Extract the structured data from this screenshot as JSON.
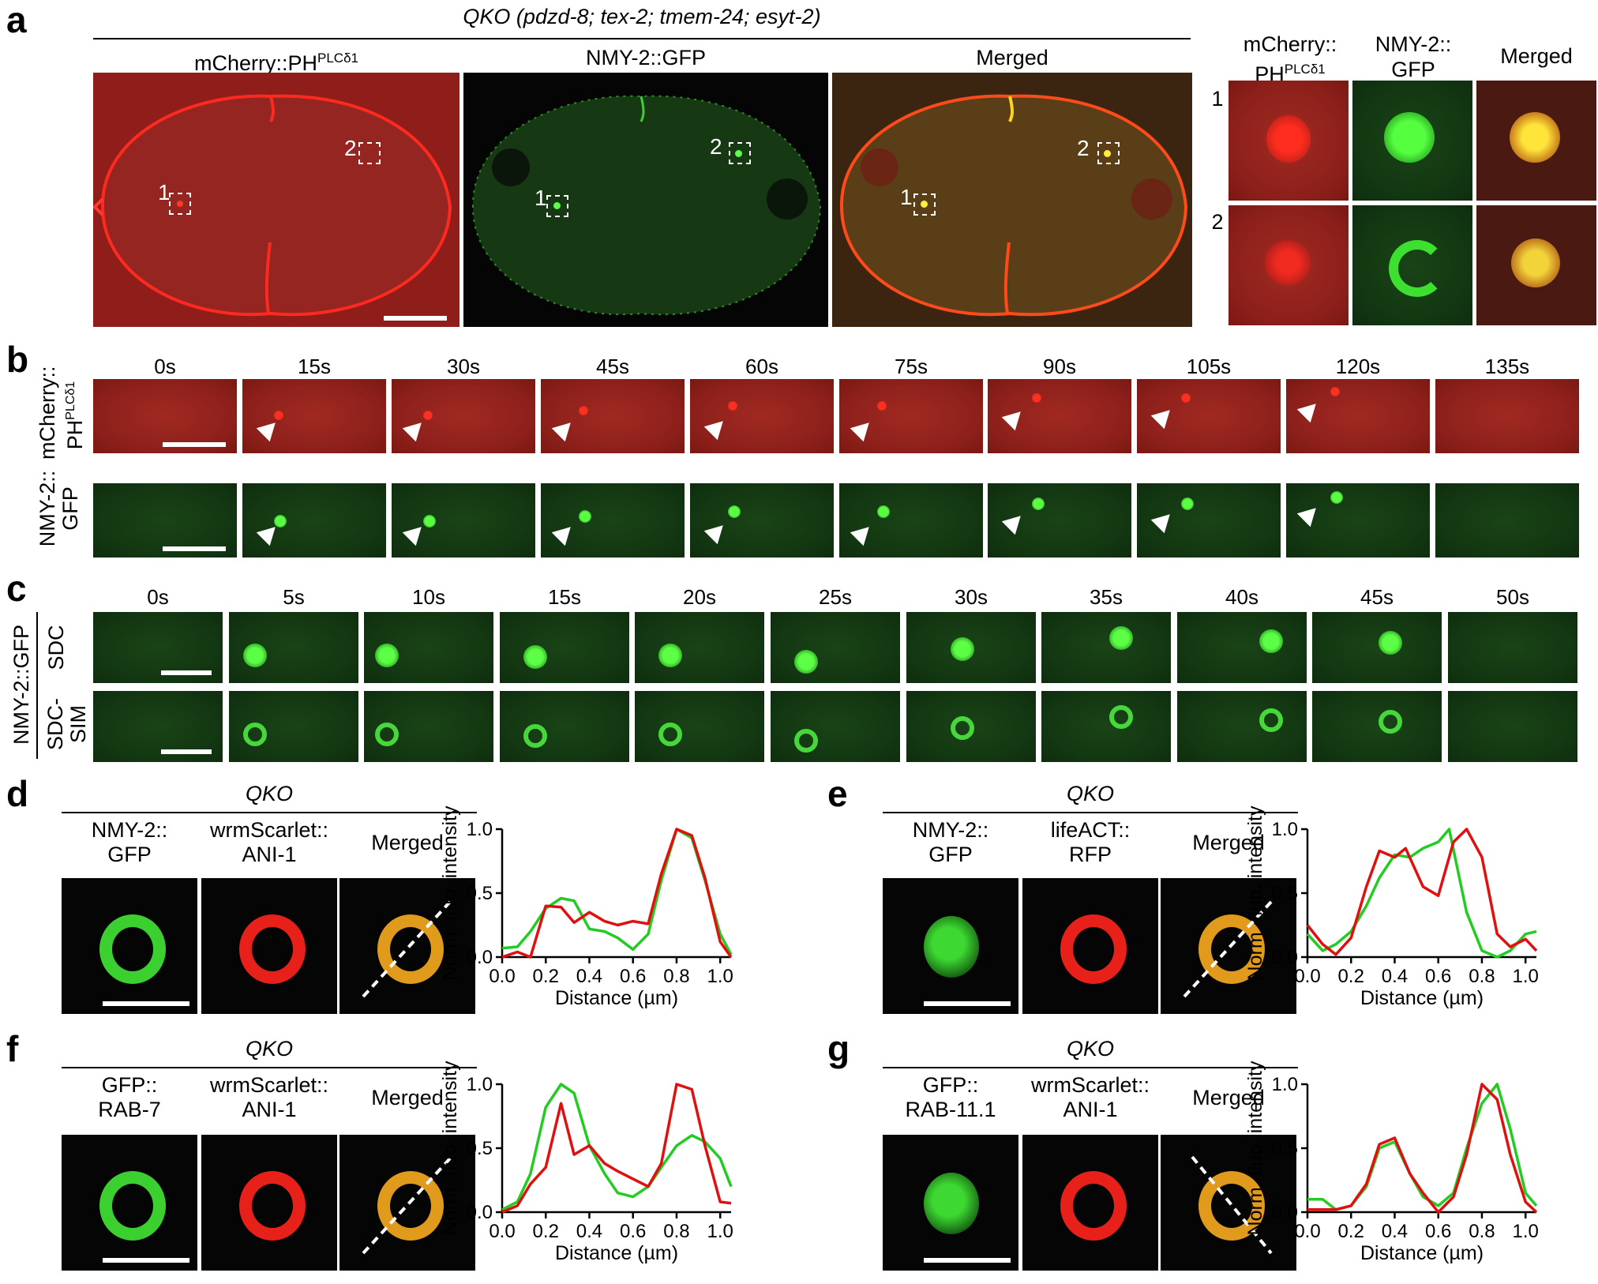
{
  "panel_a": {
    "letter": "a",
    "title": "QKO (pdzd-8; tex-2; tmem-24; esyt-2)",
    "ch1_label": "mCherry::PH",
    "ch1_sup": "PLCδ1",
    "ch2_label": "NMY-2::GFP",
    "ch3_label": "Merged",
    "roi1": "1",
    "roi2": "2",
    "inset_ch1_line1": "mCherry::",
    "inset_ch1_line2": "PH",
    "inset_ch1_sup": "PLCδ1",
    "inset_ch2_line1": "NMY-2::",
    "inset_ch2_line2": "GFP",
    "inset_ch3": "Merged",
    "row1": "1",
    "row2": "2"
  },
  "panel_b": {
    "letter": "b",
    "times": [
      "0s",
      "15s",
      "30s",
      "45s",
      "60s",
      "75s",
      "90s",
      "105s",
      "120s",
      "135s"
    ],
    "row1_line1": "mCherry::",
    "row1_line2": "PH",
    "row1_sup": "PLCδ1",
    "row2_line1": "NMY-2::",
    "row2_line2": "GFP"
  },
  "panel_c": {
    "letter": "c",
    "times": [
      "0s",
      "5s",
      "10s",
      "15s",
      "20s",
      "25s",
      "30s",
      "35s",
      "40s",
      "45s",
      "50s"
    ],
    "group_label": "NMY-2::GFP",
    "row1": "SDC",
    "row2_line1": "SDC-",
    "row2_line2": "SIM"
  },
  "panel_d": {
    "letter": "d",
    "title": "QKO",
    "ch1_line1": "NMY-2::",
    "ch1_line2": "GFP",
    "ch2_line1": "wrmScarlet::",
    "ch2_line2": "ANI-1",
    "ch3": "Merged"
  },
  "panel_e": {
    "letter": "e",
    "title": "QKO",
    "ch1_line1": "NMY-2::",
    "ch1_line2": "GFP",
    "ch2_line1": "lifeACT::",
    "ch2_line2": "RFP",
    "ch3": "Merged"
  },
  "panel_f": {
    "letter": "f",
    "title": "QKO",
    "ch1_line1": "GFP::",
    "ch1_line2": "RAB-7",
    "ch2_line1": "wrmScarlet::",
    "ch2_line2": "ANI-1",
    "ch3": "Merged"
  },
  "panel_g": {
    "letter": "g",
    "title": "QKO",
    "ch1_line1": "GFP::",
    "ch1_line2": "RAB-11.1",
    "ch2_line1": "wrmScarlet::",
    "ch2_line2": "ANI-1",
    "ch3": "Merged"
  },
  "chart_data": [
    {
      "id": "d",
      "type": "line",
      "xlabel": "Distance (µm)",
      "ylabel": "Norm. fluo. intensity",
      "xlim": [
        0,
        1.05
      ],
      "ylim": [
        0,
        1.0
      ],
      "xticks": [
        "0.0",
        "0.2",
        "0.4",
        "0.6",
        "0.8",
        "1.0"
      ],
      "yticks": [
        "0.0",
        "0.5",
        "1.0"
      ],
      "colors": {
        "green": "#22cc22",
        "red": "#e01010"
      },
      "series": [
        {
          "color": "green",
          "x": [
            0,
            0.07,
            0.13,
            0.2,
            0.27,
            0.33,
            0.4,
            0.47,
            0.53,
            0.6,
            0.67,
            0.73,
            0.8,
            0.87,
            0.93,
            1.0,
            1.05
          ],
          "y": [
            0.07,
            0.08,
            0.2,
            0.38,
            0.46,
            0.44,
            0.22,
            0.2,
            0.15,
            0.06,
            0.18,
            0.6,
            1.0,
            0.93,
            0.6,
            0.18,
            0.02
          ]
        },
        {
          "color": "red",
          "x": [
            0,
            0.07,
            0.13,
            0.2,
            0.27,
            0.33,
            0.4,
            0.47,
            0.53,
            0.6,
            0.67,
            0.73,
            0.8,
            0.87,
            0.93,
            1.0,
            1.05
          ],
          "y": [
            0.0,
            0.04,
            0.0,
            0.4,
            0.39,
            0.27,
            0.35,
            0.28,
            0.25,
            0.28,
            0.26,
            0.65,
            1.0,
            0.95,
            0.62,
            0.12,
            0.0
          ]
        }
      ]
    },
    {
      "id": "e",
      "type": "line",
      "xlabel": "Distance (µm)",
      "ylabel": "Norm. fluo. intensity",
      "xlim": [
        0,
        1.05
      ],
      "ylim": [
        0,
        1.0
      ],
      "xticks": [
        "0.0",
        "0.2",
        "0.4",
        "0.6",
        "0.8",
        "1.0"
      ],
      "yticks": [
        "0.0",
        "0.5",
        "1.0"
      ],
      "colors": {
        "green": "#22cc22",
        "red": "#e01010"
      },
      "series": [
        {
          "color": "green",
          "x": [
            0,
            0.07,
            0.13,
            0.2,
            0.27,
            0.33,
            0.4,
            0.47,
            0.53,
            0.6,
            0.65,
            0.73,
            0.8,
            0.87,
            0.93,
            1.0,
            1.05
          ],
          "y": [
            0.18,
            0.05,
            0.1,
            0.2,
            0.4,
            0.62,
            0.8,
            0.78,
            0.85,
            0.9,
            1.0,
            0.35,
            0.05,
            0.0,
            0.05,
            0.18,
            0.2
          ]
        },
        {
          "color": "red",
          "x": [
            0,
            0.07,
            0.13,
            0.2,
            0.27,
            0.33,
            0.4,
            0.45,
            0.53,
            0.6,
            0.67,
            0.73,
            0.8,
            0.87,
            0.93,
            1.0,
            1.05
          ],
          "y": [
            0.25,
            0.1,
            0.02,
            0.15,
            0.55,
            0.83,
            0.78,
            0.85,
            0.55,
            0.48,
            0.9,
            1.0,
            0.78,
            0.18,
            0.08,
            0.14,
            0.05
          ]
        }
      ]
    },
    {
      "id": "f",
      "type": "line",
      "xlabel": "Distance (µm)",
      "ylabel": "Norm. fluo. intensity",
      "xlim": [
        0,
        1.05
      ],
      "ylim": [
        0,
        1.0
      ],
      "xticks": [
        "0.0",
        "0.2",
        "0.4",
        "0.6",
        "0.8",
        "1.0"
      ],
      "yticks": [
        "0.0",
        "0.5",
        "1.0"
      ],
      "colors": {
        "green": "#22cc22",
        "red": "#e01010"
      },
      "series": [
        {
          "color": "green",
          "x": [
            0,
            0.07,
            0.13,
            0.2,
            0.27,
            0.33,
            0.4,
            0.47,
            0.53,
            0.6,
            0.67,
            0.73,
            0.8,
            0.87,
            0.93,
            1.0,
            1.05
          ],
          "y": [
            0.02,
            0.08,
            0.3,
            0.82,
            1.0,
            0.93,
            0.52,
            0.3,
            0.15,
            0.12,
            0.2,
            0.35,
            0.52,
            0.6,
            0.55,
            0.42,
            0.2
          ]
        },
        {
          "color": "red",
          "x": [
            0,
            0.07,
            0.13,
            0.2,
            0.27,
            0.33,
            0.4,
            0.47,
            0.53,
            0.6,
            0.67,
            0.73,
            0.8,
            0.87,
            0.93,
            1.0,
            1.05
          ],
          "y": [
            0.0,
            0.05,
            0.22,
            0.35,
            0.85,
            0.45,
            0.52,
            0.38,
            0.32,
            0.26,
            0.2,
            0.38,
            1.0,
            0.96,
            0.52,
            0.08,
            0.07
          ]
        }
      ]
    },
    {
      "id": "g",
      "type": "line",
      "xlabel": "Distance (µm)",
      "ylabel": "Norm. fluo. intensity",
      "xlim": [
        0,
        1.05
      ],
      "ylim": [
        0,
        1.0
      ],
      "xticks": [
        "0.0",
        "0.2",
        "0.4",
        "0.6",
        "0.8",
        "1.0"
      ],
      "yticks": [
        "0.0",
        "0.5",
        "1.0"
      ],
      "colors": {
        "green": "#22cc22",
        "red": "#e01010"
      },
      "series": [
        {
          "color": "green",
          "x": [
            0,
            0.07,
            0.13,
            0.2,
            0.27,
            0.33,
            0.4,
            0.47,
            0.53,
            0.6,
            0.67,
            0.73,
            0.8,
            0.87,
            0.93,
            1.0,
            1.05
          ],
          "y": [
            0.1,
            0.1,
            0.02,
            0.05,
            0.2,
            0.5,
            0.55,
            0.3,
            0.12,
            0.05,
            0.15,
            0.5,
            0.85,
            1.0,
            0.65,
            0.15,
            0.05
          ]
        },
        {
          "color": "red",
          "x": [
            0,
            0.07,
            0.13,
            0.2,
            0.27,
            0.33,
            0.4,
            0.47,
            0.53,
            0.6,
            0.67,
            0.73,
            0.8,
            0.87,
            0.93,
            1.0,
            1.05
          ],
          "y": [
            0.02,
            0.02,
            0.02,
            0.05,
            0.22,
            0.53,
            0.58,
            0.3,
            0.15,
            0.0,
            0.12,
            0.45,
            1.0,
            0.88,
            0.45,
            0.08,
            0.0
          ]
        }
      ]
    }
  ]
}
